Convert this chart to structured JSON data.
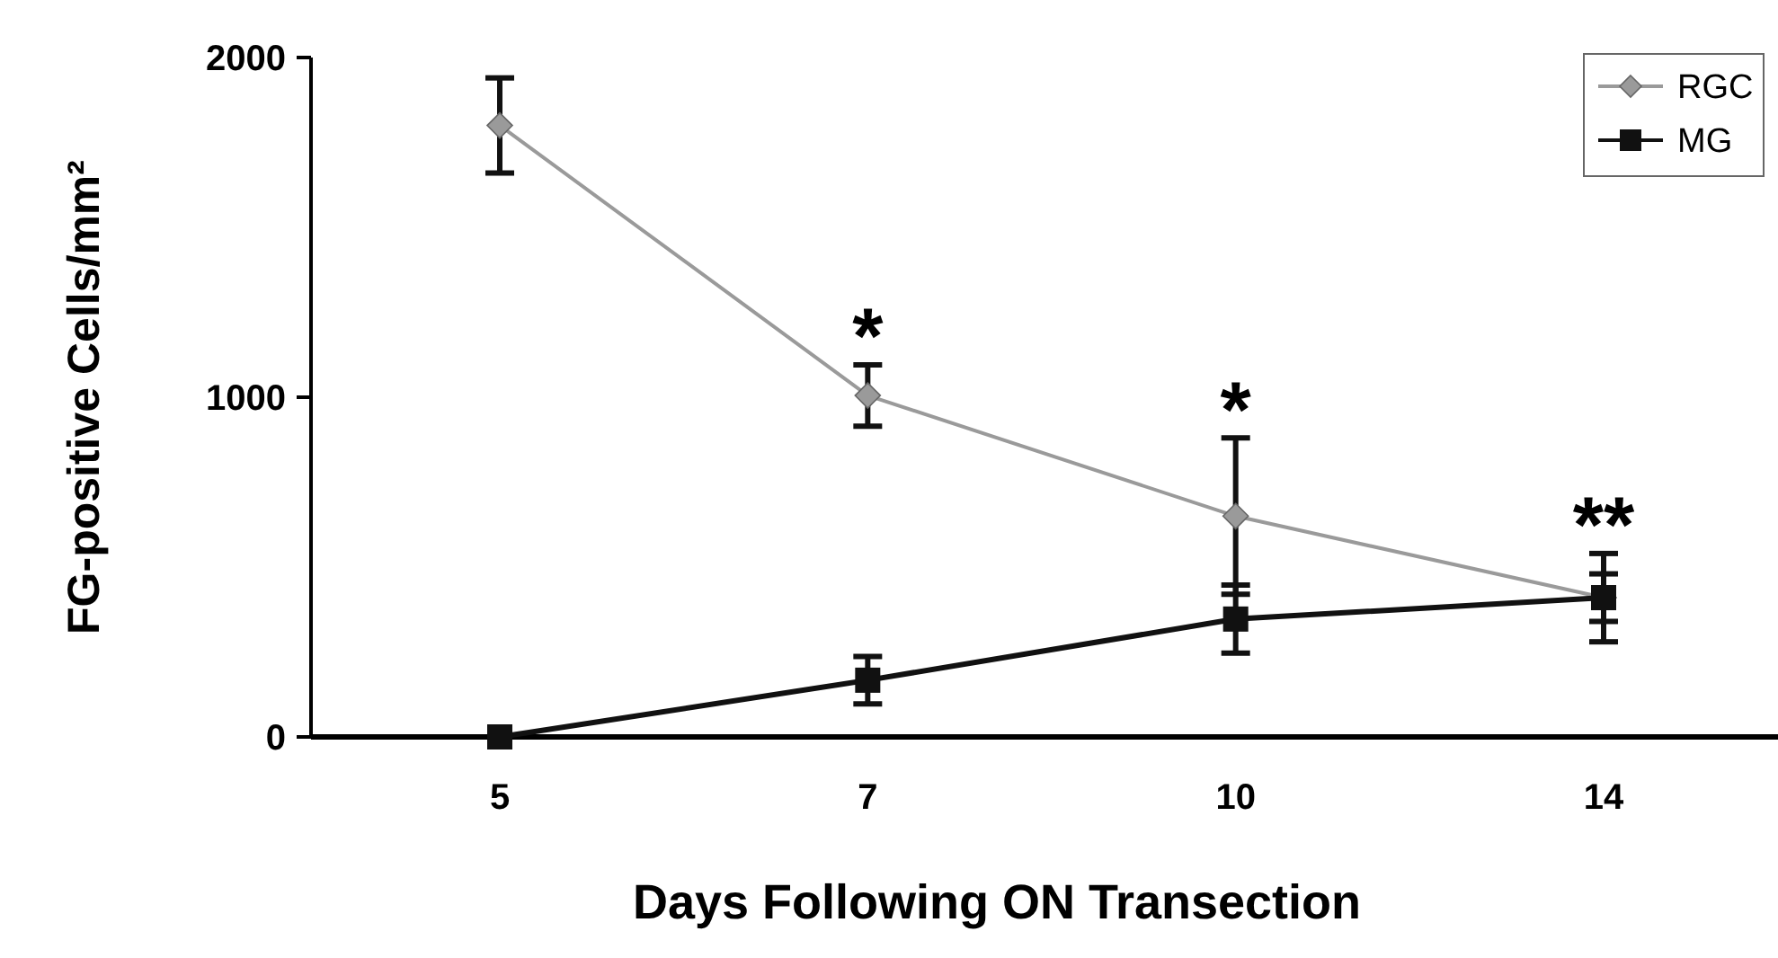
{
  "chart_data": {
    "type": "line",
    "xlabel": "Days Following ON Transection",
    "ylabel": "FG-positive Cells/mm²",
    "categories": [
      "5",
      "7",
      "10",
      "14"
    ],
    "series": [
      {
        "name": "RGC",
        "color": "#9a9a9a",
        "marker": "diamond",
        "values": [
          1800,
          1005,
          650,
          410
        ],
        "errors": [
          140,
          90,
          230,
          130
        ]
      },
      {
        "name": "MG",
        "color": "#111111",
        "marker": "square",
        "values": [
          0,
          167,
          347,
          410
        ],
        "errors": [
          null,
          70,
          100,
          70
        ]
      }
    ],
    "ylim": [
      0,
      2000
    ],
    "yticks": [
      0,
      1000,
      2000
    ],
    "legend": "top right",
    "grid": false,
    "annotations": [
      "*",
      "*",
      "**"
    ]
  }
}
